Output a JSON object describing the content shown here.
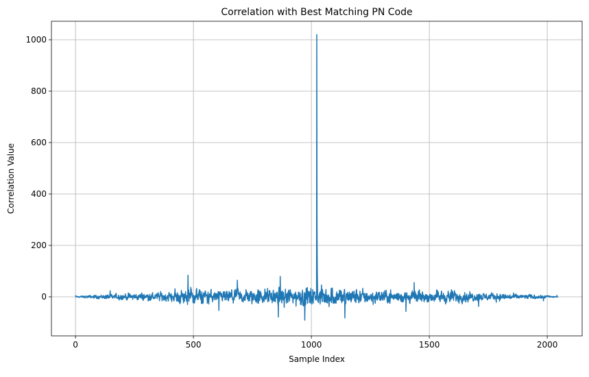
{
  "chart_data": {
    "type": "line",
    "title": "Correlation with Best Matching PN Code",
    "xlabel": "Sample Index",
    "ylabel": "Correlation Value",
    "xlim": [
      -102,
      2148
    ],
    "ylim": [
      -152,
      1072
    ],
    "xticks": [
      0,
      500,
      1000,
      1500,
      2000
    ],
    "yticks": [
      0,
      200,
      400,
      600,
      800,
      1000
    ],
    "grid": true,
    "line_color": "#1f77b4",
    "series": [
      {
        "x_start": 0,
        "x_end": 2046,
        "peak": {
          "x": 1023,
          "y": 1020
        },
        "noise_envelope_points": [
          [
            0,
            6
          ],
          [
            100,
            20
          ],
          [
            200,
            30
          ],
          [
            300,
            38
          ],
          [
            400,
            45
          ],
          [
            480,
            90
          ],
          [
            600,
            55
          ],
          [
            700,
            70
          ],
          [
            800,
            80
          ],
          [
            900,
            85
          ],
          [
            950,
            100
          ],
          [
            1000,
            90
          ],
          [
            1100,
            95
          ],
          [
            1200,
            75
          ],
          [
            1300,
            65
          ],
          [
            1400,
            60
          ],
          [
            1500,
            55
          ],
          [
            1580,
            65
          ],
          [
            1700,
            40
          ],
          [
            1800,
            35
          ],
          [
            1900,
            25
          ],
          [
            2000,
            15
          ],
          [
            2046,
            5
          ]
        ]
      }
    ]
  }
}
